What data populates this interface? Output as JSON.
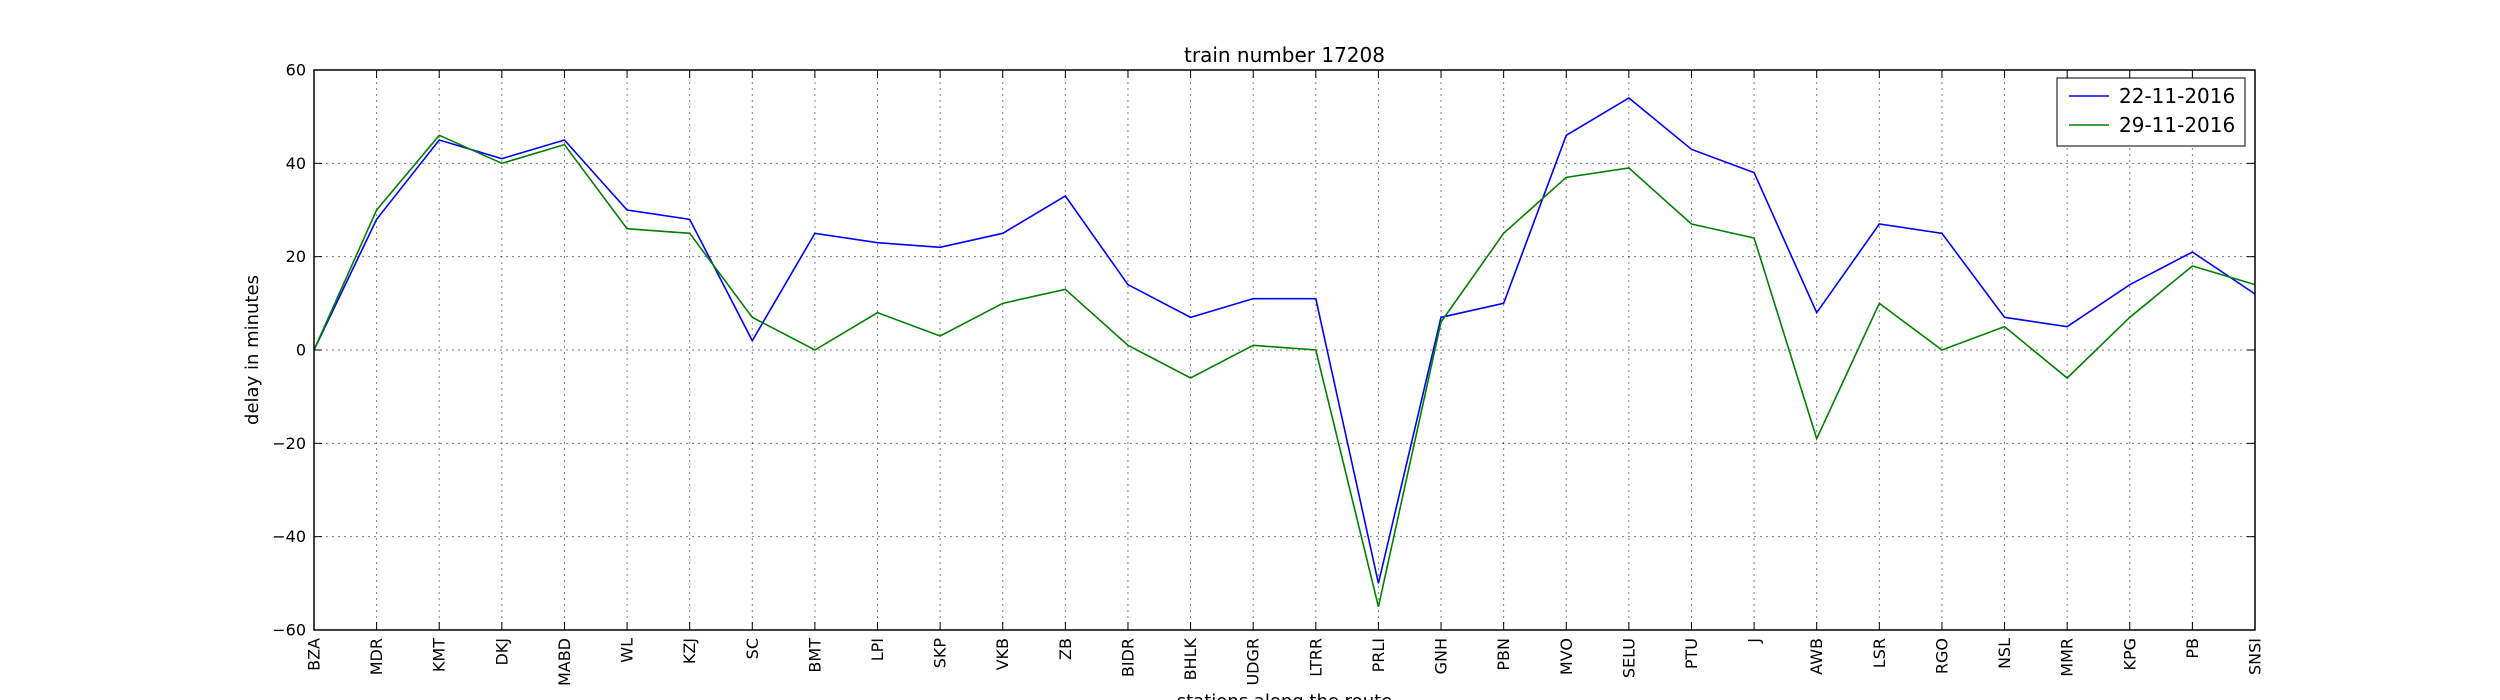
{
  "chart_data": {
    "type": "line",
    "title": "train number 17208",
    "xlabel": "stations along the route",
    "ylabel": "delay in minutes",
    "ylim": [
      -60,
      60
    ],
    "yticks": [
      -60,
      -40,
      -20,
      0,
      20,
      40,
      60
    ],
    "yticklabels": [
      "−60",
      "−40",
      "−20",
      "0",
      "20",
      "40",
      "60"
    ],
    "grid": true,
    "legend_position": "top-right",
    "categories": [
      "BZA",
      "MDR",
      "KMT",
      "DKJ",
      "MABD",
      "WL",
      "KZJ",
      "SC",
      "BMT",
      "LPI",
      "SKP",
      "VKB",
      "ZB",
      "BIDR",
      "BHLK",
      "UDGR",
      "LTRR",
      "PRLI",
      "GNH",
      "PBN",
      "MVO",
      "SELU",
      "PTU",
      "J",
      "AWB",
      "LSR",
      "RGO",
      "NSL",
      "MMR",
      "KPG",
      "PB",
      "SNSI"
    ],
    "series": [
      {
        "name": "22-11-2016",
        "color": "#0000ff",
        "values": [
          0,
          28,
          45,
          41,
          45,
          30,
          28,
          2,
          25,
          23,
          22,
          25,
          33,
          14,
          7,
          11,
          11,
          -50,
          7,
          10,
          46,
          54,
          43,
          38,
          8,
          27,
          25,
          7,
          5,
          14,
          21,
          12
        ]
      },
      {
        "name": "29-11-2016",
        "color": "#008000",
        "values": [
          0,
          30,
          46,
          40,
          44,
          26,
          25,
          7,
          0,
          8,
          3,
          10,
          13,
          1,
          -6,
          1,
          0,
          -55,
          6,
          25,
          37,
          39,
          27,
          24,
          -19,
          10,
          0,
          5,
          -6,
          7,
          18,
          14
        ]
      }
    ]
  }
}
